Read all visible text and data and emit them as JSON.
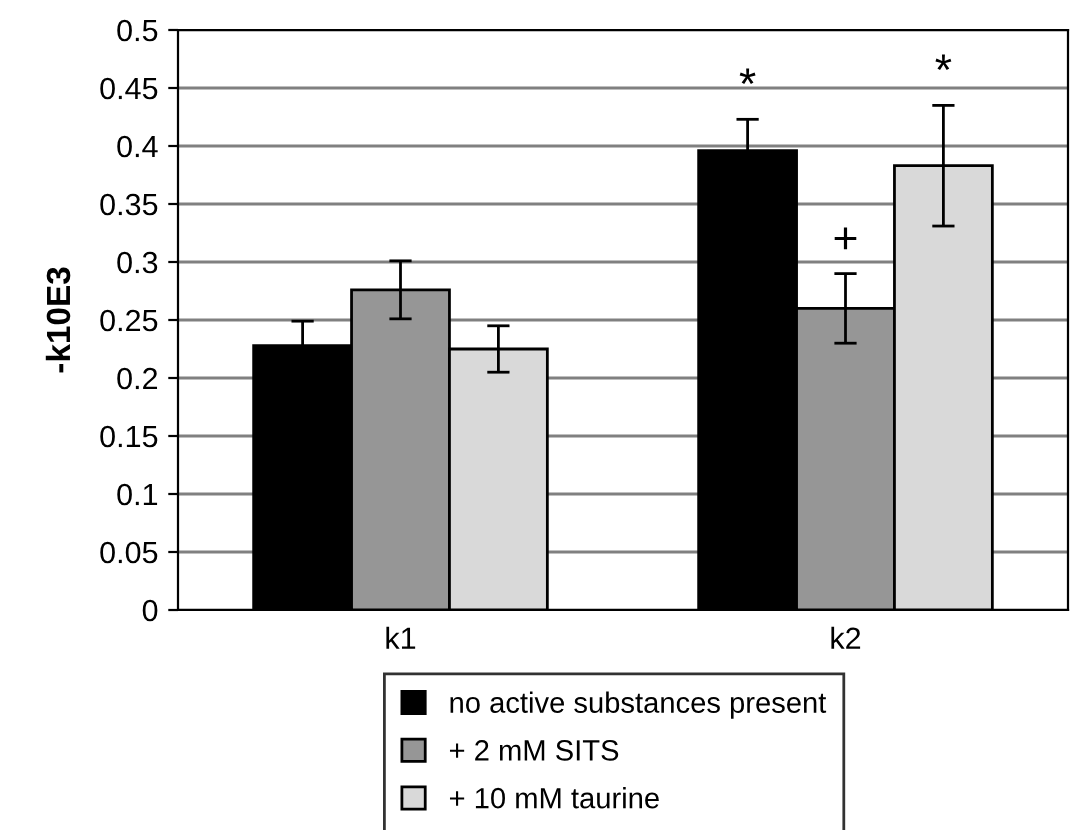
{
  "chart_data": {
    "type": "bar",
    "ylabel": "-k10E3",
    "categories": [
      "k1",
      "k2"
    ],
    "series": [
      {
        "name": "no active substances present",
        "color": "#000000",
        "values": [
          0.228,
          0.396
        ],
        "errors": [
          0.021,
          0.027
        ],
        "value_labels": [
          null,
          "*"
        ]
      },
      {
        "name": "+ 2 mM SITS",
        "color": "#969696",
        "values": [
          0.276,
          0.26
        ],
        "errors": [
          0.025,
          0.03
        ],
        "value_labels": [
          null,
          "+"
        ]
      },
      {
        "name": "+ 10 mM taurine",
        "color": "#d9d9d9",
        "values": [
          0.225,
          0.383
        ],
        "errors": [
          0.02,
          0.052
        ],
        "value_labels": [
          null,
          "*"
        ]
      }
    ],
    "ylim": [
      0,
      0.5
    ],
    "yticks": [
      0,
      0.05,
      0.1,
      0.15,
      0.2,
      0.25,
      0.3,
      0.35,
      0.4,
      0.45,
      0.5
    ],
    "grid": "y",
    "legend": "bottom"
  }
}
